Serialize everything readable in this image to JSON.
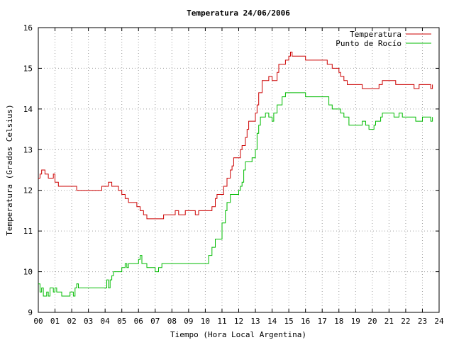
{
  "chart_data": {
    "type": "line",
    "title": "Temperatura 24/06/2006",
    "xlabel": "Tiempo (Hora Local Argentina)",
    "ylabel": "Temperatura (Grados Celsius)",
    "xlim": [
      0,
      24
    ],
    "ylim": [
      9,
      16
    ],
    "x_ticks": [
      "00",
      "01",
      "02",
      "03",
      "04",
      "05",
      "06",
      "07",
      "08",
      "09",
      "10",
      "11",
      "12",
      "13",
      "14",
      "15",
      "16",
      "17",
      "18",
      "19",
      "20",
      "21",
      "22",
      "23",
      "24"
    ],
    "y_ticks": [
      "9",
      "10",
      "11",
      "12",
      "13",
      "14",
      "15",
      "16"
    ],
    "grid": true,
    "legend": "top-right",
    "step": true,
    "series": [
      {
        "name": "Temperatura",
        "color": "#cc0000",
        "points": [
          [
            0.0,
            12.3
          ],
          [
            0.1,
            12.4
          ],
          [
            0.2,
            12.5
          ],
          [
            0.4,
            12.4
          ],
          [
            0.6,
            12.3
          ],
          [
            0.9,
            12.4
          ],
          [
            1.0,
            12.2
          ],
          [
            1.2,
            12.1
          ],
          [
            2.3,
            12.0
          ],
          [
            3.5,
            12.0
          ],
          [
            3.8,
            12.1
          ],
          [
            4.2,
            12.2
          ],
          [
            4.4,
            12.1
          ],
          [
            4.8,
            12.0
          ],
          [
            5.0,
            11.9
          ],
          [
            5.2,
            11.8
          ],
          [
            5.4,
            11.7
          ],
          [
            5.9,
            11.6
          ],
          [
            6.1,
            11.5
          ],
          [
            6.3,
            11.4
          ],
          [
            6.5,
            11.3
          ],
          [
            7.5,
            11.4
          ],
          [
            8.0,
            11.4
          ],
          [
            8.2,
            11.5
          ],
          [
            8.4,
            11.4
          ],
          [
            8.6,
            11.4
          ],
          [
            8.8,
            11.5
          ],
          [
            9.2,
            11.5
          ],
          [
            9.4,
            11.4
          ],
          [
            9.6,
            11.5
          ],
          [
            10.2,
            11.5
          ],
          [
            10.4,
            11.6
          ],
          [
            10.6,
            11.8
          ],
          [
            10.7,
            11.9
          ],
          [
            11.1,
            12.1
          ],
          [
            11.3,
            12.3
          ],
          [
            11.5,
            12.5
          ],
          [
            11.6,
            12.6
          ],
          [
            11.7,
            12.8
          ],
          [
            12.1,
            13.0
          ],
          [
            12.2,
            13.1
          ],
          [
            12.4,
            13.3
          ],
          [
            12.5,
            13.5
          ],
          [
            12.6,
            13.7
          ],
          [
            13.0,
            13.9
          ],
          [
            13.1,
            14.1
          ],
          [
            13.2,
            14.4
          ],
          [
            13.4,
            14.7
          ],
          [
            13.8,
            14.8
          ],
          [
            14.0,
            14.7
          ],
          [
            14.3,
            14.9
          ],
          [
            14.4,
            15.1
          ],
          [
            14.8,
            15.2
          ],
          [
            15.0,
            15.3
          ],
          [
            15.1,
            15.4
          ],
          [
            15.2,
            15.3
          ],
          [
            15.8,
            15.3
          ],
          [
            16.0,
            15.2
          ],
          [
            17.0,
            15.2
          ],
          [
            17.3,
            15.1
          ],
          [
            17.6,
            15.0
          ],
          [
            18.0,
            14.9
          ],
          [
            18.1,
            14.8
          ],
          [
            18.3,
            14.7
          ],
          [
            18.5,
            14.6
          ],
          [
            19.2,
            14.6
          ],
          [
            19.4,
            14.5
          ],
          [
            20.2,
            14.5
          ],
          [
            20.4,
            14.6
          ],
          [
            20.6,
            14.7
          ],
          [
            21.2,
            14.7
          ],
          [
            21.4,
            14.6
          ],
          [
            22.3,
            14.6
          ],
          [
            22.5,
            14.5
          ],
          [
            22.8,
            14.6
          ],
          [
            23.2,
            14.6
          ],
          [
            23.5,
            14.5
          ],
          [
            23.6,
            14.6
          ]
        ]
      },
      {
        "name": "Punto de Rocío",
        "color": "#00bb00",
        "points": [
          [
            0.0,
            9.7
          ],
          [
            0.1,
            9.5
          ],
          [
            0.2,
            9.6
          ],
          [
            0.3,
            9.4
          ],
          [
            0.5,
            9.5
          ],
          [
            0.6,
            9.4
          ],
          [
            0.7,
            9.6
          ],
          [
            0.9,
            9.5
          ],
          [
            1.0,
            9.6
          ],
          [
            1.1,
            9.5
          ],
          [
            1.2,
            9.5
          ],
          [
            1.4,
            9.4
          ],
          [
            1.9,
            9.5
          ],
          [
            2.1,
            9.4
          ],
          [
            2.2,
            9.6
          ],
          [
            2.3,
            9.7
          ],
          [
            2.4,
            9.6
          ],
          [
            4.0,
            9.6
          ],
          [
            4.1,
            9.8
          ],
          [
            4.2,
            9.6
          ],
          [
            4.3,
            9.8
          ],
          [
            4.4,
            9.9
          ],
          [
            4.5,
            10.0
          ],
          [
            4.9,
            10.0
          ],
          [
            5.0,
            10.1
          ],
          [
            5.2,
            10.2
          ],
          [
            5.3,
            10.1
          ],
          [
            5.4,
            10.2
          ],
          [
            6.0,
            10.3
          ],
          [
            6.1,
            10.4
          ],
          [
            6.2,
            10.2
          ],
          [
            6.5,
            10.1
          ],
          [
            6.9,
            10.1
          ],
          [
            7.0,
            10.0
          ],
          [
            7.2,
            10.1
          ],
          [
            7.4,
            10.2
          ],
          [
            10.0,
            10.2
          ],
          [
            10.2,
            10.4
          ],
          [
            10.4,
            10.6
          ],
          [
            10.6,
            10.8
          ],
          [
            11.0,
            11.2
          ],
          [
            11.2,
            11.5
          ],
          [
            11.3,
            11.7
          ],
          [
            11.5,
            11.9
          ],
          [
            12.0,
            12.0
          ],
          [
            12.1,
            12.1
          ],
          [
            12.2,
            12.2
          ],
          [
            12.3,
            12.5
          ],
          [
            12.4,
            12.7
          ],
          [
            12.8,
            12.8
          ],
          [
            13.0,
            13.0
          ],
          [
            13.1,
            13.4
          ],
          [
            13.2,
            13.6
          ],
          [
            13.3,
            13.8
          ],
          [
            13.6,
            13.9
          ],
          [
            13.8,
            13.8
          ],
          [
            14.0,
            13.7
          ],
          [
            14.1,
            13.9
          ],
          [
            14.3,
            14.1
          ],
          [
            14.6,
            14.3
          ],
          [
            14.8,
            14.4
          ],
          [
            15.8,
            14.4
          ],
          [
            16.0,
            14.3
          ],
          [
            17.2,
            14.3
          ],
          [
            17.4,
            14.1
          ],
          [
            17.6,
            14.0
          ],
          [
            18.0,
            14.0
          ],
          [
            18.1,
            13.9
          ],
          [
            18.3,
            13.8
          ],
          [
            18.6,
            13.6
          ],
          [
            19.3,
            13.6
          ],
          [
            19.4,
            13.7
          ],
          [
            19.6,
            13.6
          ],
          [
            19.8,
            13.5
          ],
          [
            20.0,
            13.5
          ],
          [
            20.1,
            13.6
          ],
          [
            20.2,
            13.7
          ],
          [
            20.5,
            13.8
          ],
          [
            20.6,
            13.9
          ],
          [
            21.2,
            13.9
          ],
          [
            21.3,
            13.8
          ],
          [
            21.5,
            13.8
          ],
          [
            21.6,
            13.9
          ],
          [
            21.8,
            13.8
          ],
          [
            22.5,
            13.8
          ],
          [
            22.6,
            13.7
          ],
          [
            23.0,
            13.8
          ],
          [
            23.2,
            13.8
          ],
          [
            23.5,
            13.7
          ],
          [
            23.6,
            13.8
          ]
        ]
      }
    ]
  }
}
